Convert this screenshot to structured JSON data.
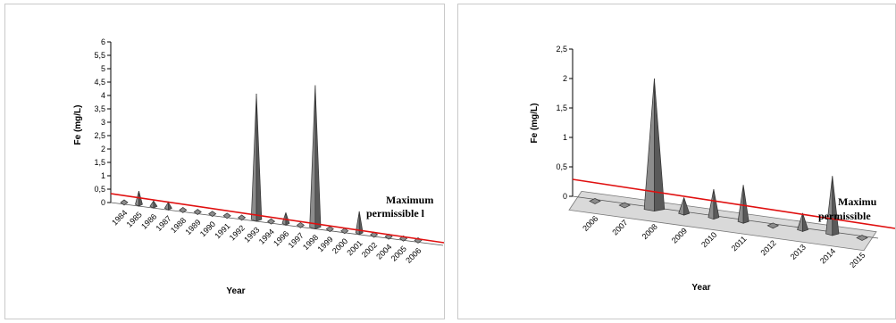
{
  "chart_data": [
    {
      "type": "bar",
      "style": "3d-cone",
      "categories": [
        "1984",
        "1985",
        "1986",
        "1987",
        "1988",
        "1989",
        "1990",
        "1991",
        "1992",
        "1993",
        "1994",
        "1996",
        "1997",
        "1998",
        "1999",
        "2000",
        "2001",
        "2002",
        "2004",
        "2005",
        "2006"
      ],
      "values": [
        0.05,
        0.5,
        0.2,
        0.22,
        0.12,
        0.1,
        0.05,
        0.08,
        0.1,
        4.7,
        0.05,
        0.4,
        0.14,
        5.3,
        0.05,
        0.03,
        0.8,
        0.14,
        0.05,
        0.1,
        0.03
      ],
      "ylabel": "Fe (mg/L)",
      "xlabel": "Year",
      "yticks": [
        "0",
        "0,5",
        "1",
        "1,5",
        "2",
        "2,5",
        "3",
        "3,5",
        "4",
        "4,5",
        "5",
        "5,5",
        "6"
      ],
      "ylim": [
        0,
        6
      ],
      "limit_line": {
        "value": 0.3,
        "label_line1": "Maximum",
        "label_line2": "permissible l"
      },
      "colors": {
        "cone": "#8c8c8c",
        "cone_dark": "#5a5a5a",
        "limit": "#e01010",
        "axis": "#000000"
      },
      "grid": false
    },
    {
      "type": "bar",
      "style": "3d-cone",
      "categories": [
        "2006",
        "2007",
        "2008",
        "2009",
        "2010",
        "2011",
        "2012",
        "2013",
        "2014",
        "2015"
      ],
      "values": [
        0.03,
        0.03,
        2.22,
        0.27,
        0.48,
        0.62,
        0.03,
        0.28,
        0.98,
        0.03
      ],
      "ylabel": "Fe (mg/L)",
      "xlabel": "Year",
      "yticks": [
        "0",
        "0,5",
        "1",
        "1,5",
        "2",
        "2,5"
      ],
      "ylim": [
        0,
        2.5
      ],
      "limit_line": {
        "value": 0.3,
        "label_line1": "Maximu",
        "label_line2": "permissible"
      },
      "colors": {
        "cone": "#8c8c8c",
        "cone_dark": "#5a5a5a",
        "limit": "#e01010",
        "floor": "#d9d9d9",
        "axis": "#000000"
      },
      "grid": false
    }
  ]
}
